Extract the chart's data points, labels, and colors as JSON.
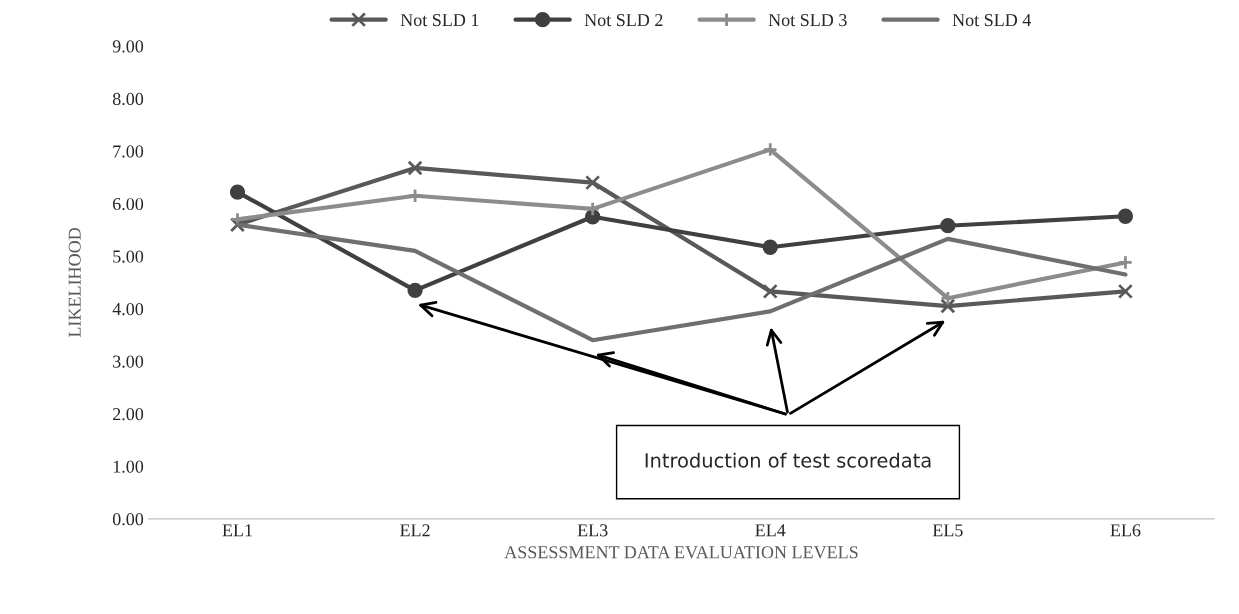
{
  "chart_data": {
    "type": "line",
    "xlabel": "ASSESSMENT DATA EVALUATION LEVELS",
    "ylabel": "LIKELIHOOD",
    "categories": [
      "EL1",
      "EL2",
      "EL3",
      "EL4",
      "EL5",
      "EL6"
    ],
    "series": [
      {
        "name": "Not SLD 1",
        "color": "#595959",
        "marker": "cross",
        "values": [
          5.6,
          6.68,
          6.4,
          4.33,
          4.05,
          4.33
        ]
      },
      {
        "name": "Not SLD 2",
        "color": "#404040",
        "marker": "circle",
        "values": [
          6.22,
          4.35,
          5.75,
          5.17,
          5.58,
          5.76
        ]
      },
      {
        "name": "Not SLD 3",
        "color": "#8c8c8c",
        "marker": "plus",
        "values": [
          5.7,
          6.15,
          5.9,
          7.03,
          4.2,
          4.88
        ]
      },
      {
        "name": "Not SLD 4",
        "color": "#6f6f6f",
        "marker": "none",
        "values": [
          5.6,
          5.1,
          3.4,
          3.95,
          5.33,
          4.65
        ]
      }
    ],
    "ylim": [
      0,
      9
    ],
    "yticks": [
      {
        "value": 0,
        "label": "0.00"
      },
      {
        "value": 1,
        "label": "1.00"
      },
      {
        "value": 2,
        "label": "2.00"
      },
      {
        "value": 3,
        "label": "3.00"
      },
      {
        "value": 4,
        "label": "4.00"
      },
      {
        "value": 5,
        "label": "5.00"
      },
      {
        "value": 6,
        "label": "6.00"
      },
      {
        "value": 7,
        "label": "7.00"
      },
      {
        "value": 8,
        "label": "8.00"
      },
      {
        "value": 9,
        "label": "9.00"
      }
    ],
    "grid": false,
    "legend": "top",
    "annotations": [
      "Introduction of test scoredata"
    ]
  }
}
